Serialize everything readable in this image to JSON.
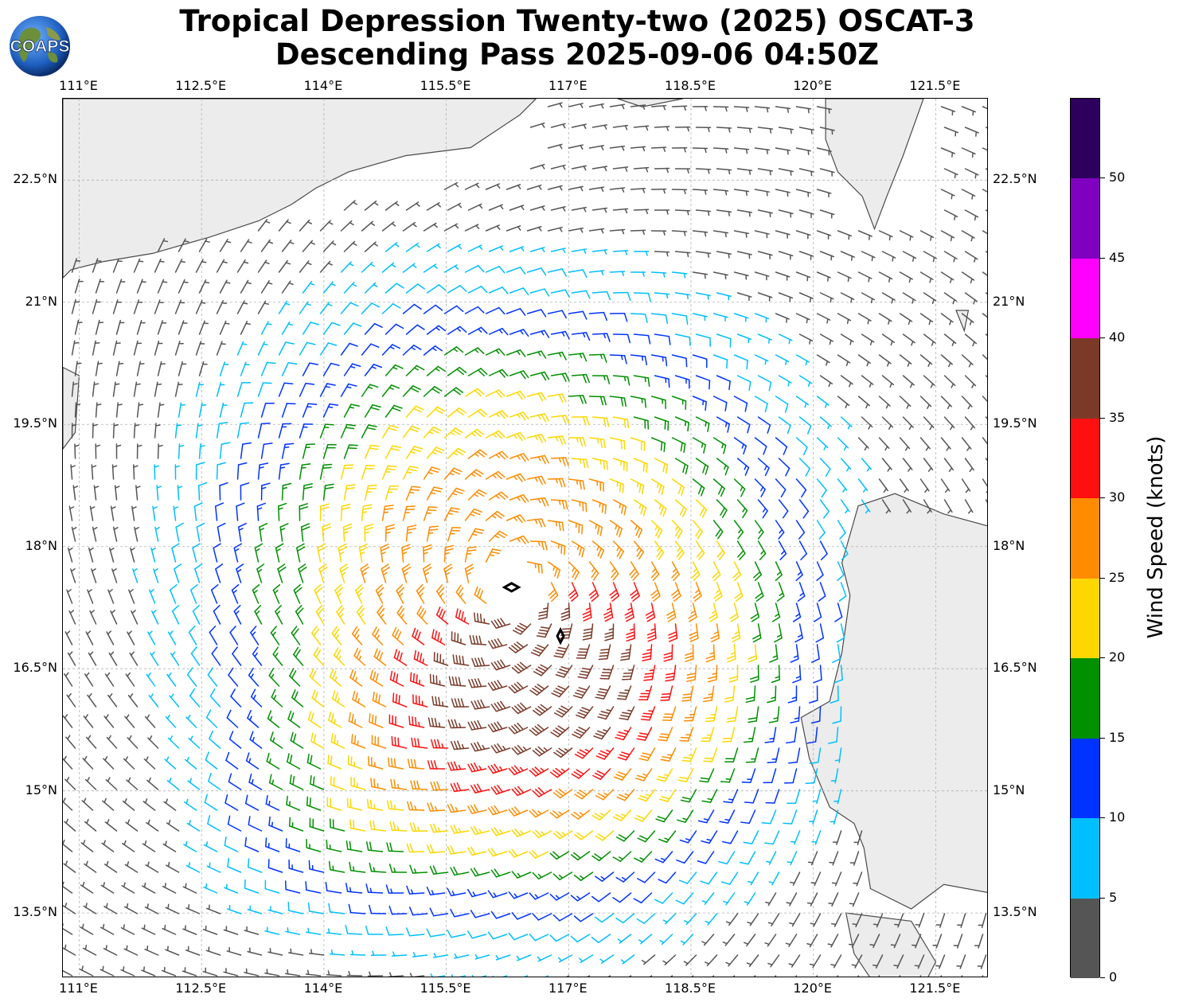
{
  "title": {
    "line1": "Tropical Depression Twenty-two (2025) OSCAT-3",
    "line2": "Descending Pass 2025-09-06 04:50Z"
  },
  "logo": {
    "text": "COAPS"
  },
  "map": {
    "lon_range": [
      110.8,
      122.15
    ],
    "lat_range": [
      12.7,
      23.5
    ],
    "lon_ticks": [
      "111°E",
      "112.5°E",
      "114°E",
      "115.5°E",
      "117°E",
      "118.5°E",
      "120°E",
      "121.5°E"
    ],
    "lat_ticks": [
      "22.5°N",
      "21°N",
      "19.5°N",
      "18°N",
      "16.5°N",
      "15°N",
      "13.5°N"
    ],
    "storm_center": {
      "lon": 116.3,
      "lat": 17.5
    },
    "max_wind_knots": 38
  },
  "colorbar": {
    "label": "Wind Speed (knots)",
    "tick_labels": [
      "0",
      "5",
      "10",
      "15",
      "20",
      "25",
      "30",
      "35",
      "40",
      "45",
      "50"
    ],
    "bins": [
      {
        "min": 0,
        "max": 5,
        "color": "#555555"
      },
      {
        "min": 5,
        "max": 10,
        "color": "#00bfff"
      },
      {
        "min": 10,
        "max": 15,
        "color": "#0033ff"
      },
      {
        "min": 15,
        "max": 20,
        "color": "#009000"
      },
      {
        "min": 20,
        "max": 25,
        "color": "#ffd700"
      },
      {
        "min": 25,
        "max": 30,
        "color": "#ff8c00"
      },
      {
        "min": 30,
        "max": 35,
        "color": "#ff1010"
      },
      {
        "min": 35,
        "max": 40,
        "color": "#7b3a28"
      },
      {
        "min": 40,
        "max": 45,
        "color": "#ff00ff"
      },
      {
        "min": 45,
        "max": 50,
        "color": "#8000c0"
      },
      {
        "min": 50,
        "max": 55,
        "color": "#2e005e"
      }
    ]
  }
}
